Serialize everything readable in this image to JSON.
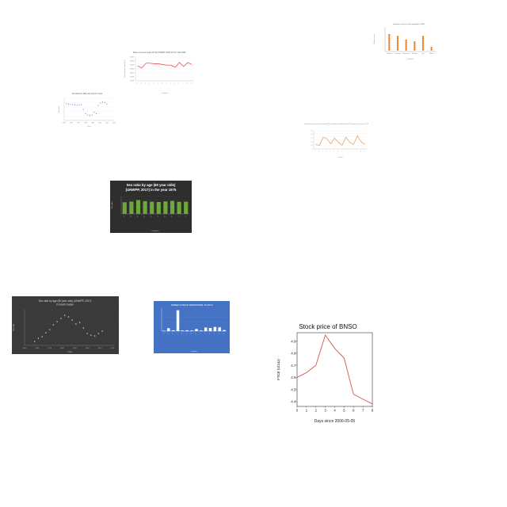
{
  "chart_data": [
    {
      "id": "c1",
      "type": "line",
      "title": "Share of women aged 15-49 (UNWPP, 2019) for the Year 1990",
      "xlabel": "Countries",
      "ylabel": "Share of women aged 15-49",
      "categories": [
        "A",
        "B",
        "C",
        "D",
        "E",
        "F",
        "G",
        "H",
        "I",
        "J",
        "K",
        "L",
        "M",
        "N"
      ],
      "y_ticks": [
        "50.00%",
        "49.50%",
        "49.00%",
        "48.50%",
        "48.00%",
        "47.50%",
        "47.00%"
      ],
      "values": [
        49.2,
        48.9,
        49.6,
        49.6,
        49.5,
        49.5,
        49.4,
        49.3,
        49.3,
        49.0,
        49.7,
        49.1,
        49.7,
        49.4
      ],
      "ylim": [
        47.0,
        50.5
      ],
      "color": "#e8505b"
    },
    {
      "id": "c2",
      "type": "scatter",
      "title": "Sex Ratio for Male and Girls for Years",
      "xlabel": "Years",
      "ylabel": "Sex Ratio",
      "x_ticks": [
        "1950",
        "1960",
        "1970",
        "1980",
        "1990",
        "2000",
        "2010",
        "2020"
      ],
      "x": [
        1953,
        1956,
        1959,
        1962,
        1965,
        1968,
        1971,
        1974,
        1977,
        1980,
        1983,
        1986,
        1989,
        1992,
        1995,
        1998,
        2001,
        2004,
        2007,
        2010
      ],
      "y": [
        104.9,
        104.8,
        104.7,
        104.6,
        104.5,
        104.4,
        104.5,
        104.6,
        103.2,
        102.0,
        101.6,
        101.4,
        101.6,
        102.4,
        102.0,
        104.4,
        105.1,
        105.5,
        105.2,
        104.8
      ],
      "xlim": [
        1950,
        2020
      ],
      "ylim": [
        100,
        106.5
      ],
      "color": "#3a6fd8"
    },
    {
      "id": "c3",
      "type": "scatter",
      "title": "Number of units of item exported in 2006",
      "xlabel": "Countries",
      "ylabel": "Number of units",
      "categories": [
        "Colombia",
        "Germany",
        "Hong Kong",
        "Indonesia",
        "Italy",
        "Mexico"
      ],
      "values": [
        9,
        8,
        6,
        5,
        8,
        2
      ],
      "ylim": [
        0,
        12
      ],
      "color": "#e67e22"
    },
    {
      "id": "c4",
      "type": "line",
      "title": "Net Foreign Direct Investment (FDI) recorded in the Balance of Payments for the year 1991",
      "xlabel": "Countries",
      "ylabel": "",
      "categories": [
        "A",
        "B",
        "C",
        "D",
        "E",
        "F",
        "G",
        "H",
        "I",
        "J",
        "K",
        "L",
        "M",
        "N"
      ],
      "y_ticks": [
        "2.5",
        "2.0",
        "1.5",
        "1.0",
        "0.5",
        "0"
      ],
      "values": [
        0.6,
        0.5,
        1.6,
        1.4,
        0.7,
        1.5,
        0.9,
        0.5,
        1.6,
        0.9,
        0.6,
        1.8,
        1.0,
        0.6
      ],
      "ylim": [
        0,
        2.5
      ],
      "color": "#e8a36a"
    },
    {
      "id": "c5",
      "type": "bar",
      "title_line1": "Sex ratio by age (60 year olds)",
      "title_line2": "(UNWPP, 2017) in the year 1975",
      "xlabel": "Countries",
      "ylabel": "Sex ratio",
      "categories": [
        "A",
        "B",
        "C",
        "D",
        "E",
        "F",
        "G",
        "H",
        "I",
        "J"
      ],
      "values": [
        80,
        85,
        95,
        88,
        84,
        82,
        86,
        90,
        83,
        84
      ],
      "ylim": [
        0,
        120
      ],
      "color": "#6fa83a"
    },
    {
      "id": "c6",
      "type": "scatter",
      "title_line1": "Sex ratio by age (60 year olds) (UNWPP, 2017)",
      "title_line2": "in South Sudan",
      "xlabel": "Years",
      "ylabel": "Sex ratio",
      "x_ticks": [
        "1950",
        "1960",
        "1970",
        "1980",
        "1990",
        "2000",
        "2010",
        "2020"
      ],
      "x": [
        1958,
        1961,
        1964,
        1967,
        1970,
        1973,
        1976,
        1979,
        1982,
        1985,
        1988,
        1991,
        1994,
        1997,
        2000,
        2003,
        2006,
        2009,
        2012
      ],
      "y": [
        75,
        79,
        81,
        86,
        90,
        96,
        100,
        104,
        108,
        106,
        102,
        97,
        99,
        92,
        85,
        83,
        82,
        85,
        88
      ],
      "xlim": [
        1950,
        2022
      ],
      "ylim": [
        70,
        115
      ],
      "color": "#cccccc"
    },
    {
      "id": "c7",
      "type": "bar",
      "title": "ARMED FORCE PERSONNEL IN 2010",
      "xlabel": "Countries",
      "ylabel": "",
      "categories": [
        "A",
        "B",
        "C",
        "D",
        "E",
        "F",
        "G",
        "H",
        "I",
        "J",
        "K",
        "L",
        "M",
        "N"
      ],
      "values": [
        2,
        14,
        4,
        100,
        3,
        4,
        3,
        10,
        3,
        17,
        15,
        20,
        18,
        5
      ],
      "ylim": [
        0,
        110
      ],
      "color": "#ffffff"
    },
    {
      "id": "c8",
      "type": "line",
      "title": "Stock price of BNSO",
      "xlabel": "Days since 2006-05-05",
      "ylabel": "Price (USD)",
      "x": [
        0,
        1,
        2,
        3,
        4,
        5,
        6,
        7,
        8
      ],
      "y": [
        4.6,
        4.64,
        4.7,
        4.95,
        4.84,
        4.76,
        4.46,
        4.42,
        4.38
      ],
      "x_ticks": [
        "0",
        "1",
        "2",
        "3",
        "4",
        "5",
        "6",
        "7",
        "8"
      ],
      "y_ticks": [
        "4.4",
        "4.5",
        "4.6",
        "4.7",
        "4.8",
        "4.9"
      ],
      "y_tick_values": [
        4.4,
        4.5,
        4.6,
        4.7,
        4.8,
        4.9
      ],
      "xlim": [
        0,
        8
      ],
      "ylim": [
        4.36,
        4.97
      ],
      "color": "#d9534f"
    }
  ]
}
